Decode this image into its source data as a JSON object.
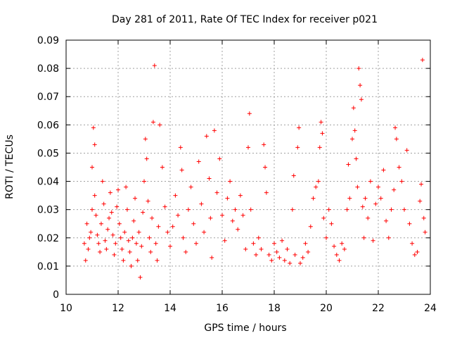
{
  "chart_data": {
    "type": "scatter",
    "title": "Day 281 of 2011, Rate Of TEC Index for receiver p021",
    "xlabel": "GPS time / hours",
    "ylabel": "ROTI / TECUs",
    "xlim": [
      10,
      24
    ],
    "ylim": [
      0,
      0.09
    ],
    "xticks": [
      10,
      12,
      14,
      16,
      18,
      20,
      22,
      24
    ],
    "xtick_labels": [
      "10",
      "12",
      "14",
      "16",
      "18",
      "20",
      "22",
      "24"
    ],
    "yticks": [
      0,
      0.01,
      0.02,
      0.03,
      0.04,
      0.05,
      0.06,
      0.07,
      0.08,
      0.09
    ],
    "ytick_labels": [
      "0",
      "0.01",
      "0.02",
      "0.03",
      "0.04",
      "0.05",
      "0.06",
      "0.07",
      "0.08",
      "0.09"
    ],
    "grid": true,
    "marker": "plus",
    "color": "#ff0000",
    "series": [
      {
        "points": [
          [
            10.7,
            0.018
          ],
          [
            10.75,
            0.012
          ],
          [
            10.8,
            0.025
          ],
          [
            10.85,
            0.016
          ],
          [
            10.9,
            0.02
          ],
          [
            10.95,
            0.022
          ],
          [
            11.0,
            0.03
          ],
          [
            11.0,
            0.045
          ],
          [
            11.05,
            0.059
          ],
          [
            11.1,
            0.053
          ],
          [
            11.1,
            0.035
          ],
          [
            11.15,
            0.028
          ],
          [
            11.2,
            0.021
          ],
          [
            11.25,
            0.018
          ],
          [
            11.3,
            0.015
          ],
          [
            11.35,
            0.025
          ],
          [
            11.4,
            0.04
          ],
          [
            11.45,
            0.032
          ],
          [
            11.5,
            0.019
          ],
          [
            11.55,
            0.016
          ],
          [
            11.6,
            0.023
          ],
          [
            11.65,
            0.027
          ],
          [
            11.7,
            0.036
          ],
          [
            11.75,
            0.029
          ],
          [
            11.8,
            0.021
          ],
          [
            11.85,
            0.014
          ],
          [
            11.9,
            0.018
          ],
          [
            11.95,
            0.031
          ],
          [
            12.0,
            0.037
          ],
          [
            12.05,
            0.025
          ],
          [
            12.1,
            0.02
          ],
          [
            12.15,
            0.016
          ],
          [
            12.2,
            0.012
          ],
          [
            12.25,
            0.022
          ],
          [
            12.3,
            0.038
          ],
          [
            12.35,
            0.03
          ],
          [
            12.4,
            0.019
          ],
          [
            12.45,
            0.015
          ],
          [
            12.5,
            0.01
          ],
          [
            12.55,
            0.02
          ],
          [
            12.6,
            0.026
          ],
          [
            12.65,
            0.034
          ],
          [
            12.7,
            0.018
          ],
          [
            12.75,
            0.012
          ],
          [
            12.8,
            0.022
          ],
          [
            12.85,
            0.006
          ],
          [
            12.9,
            0.017
          ],
          [
            12.95,
            0.029
          ],
          [
            13.0,
            0.04
          ],
          [
            13.05,
            0.055
          ],
          [
            13.1,
            0.048
          ],
          [
            13.15,
            0.033
          ],
          [
            13.2,
            0.02
          ],
          [
            13.25,
            0.015
          ],
          [
            13.3,
            0.027
          ],
          [
            13.35,
            0.061
          ],
          [
            13.4,
            0.081
          ],
          [
            13.45,
            0.018
          ],
          [
            13.5,
            0.012
          ],
          [
            13.55,
            0.024
          ],
          [
            13.6,
            0.06
          ],
          [
            13.7,
            0.045
          ],
          [
            13.8,
            0.031
          ],
          [
            13.9,
            0.022
          ],
          [
            14.0,
            0.017
          ],
          [
            14.1,
            0.024
          ],
          [
            14.2,
            0.035
          ],
          [
            14.3,
            0.028
          ],
          [
            14.4,
            0.052
          ],
          [
            14.45,
            0.044
          ],
          [
            14.5,
            0.02
          ],
          [
            14.6,
            0.015
          ],
          [
            14.7,
            0.03
          ],
          [
            14.8,
            0.038
          ],
          [
            14.9,
            0.025
          ],
          [
            15.0,
            0.018
          ],
          [
            15.1,
            0.047
          ],
          [
            15.2,
            0.032
          ],
          [
            15.3,
            0.022
          ],
          [
            15.4,
            0.056
          ],
          [
            15.5,
            0.041
          ],
          [
            15.55,
            0.027
          ],
          [
            15.6,
            0.013
          ],
          [
            15.7,
            0.058
          ],
          [
            15.8,
            0.036
          ],
          [
            15.9,
            0.048
          ],
          [
            16.0,
            0.028
          ],
          [
            16.1,
            0.019
          ],
          [
            16.2,
            0.034
          ],
          [
            16.3,
            0.04
          ],
          [
            16.4,
            0.026
          ],
          [
            16.5,
            0.03
          ],
          [
            16.6,
            0.023
          ],
          [
            16.7,
            0.035
          ],
          [
            16.8,
            0.028
          ],
          [
            16.9,
            0.016
          ],
          [
            17.0,
            0.052
          ],
          [
            17.05,
            0.064
          ],
          [
            17.1,
            0.03
          ],
          [
            17.2,
            0.018
          ],
          [
            17.3,
            0.014
          ],
          [
            17.4,
            0.02
          ],
          [
            17.5,
            0.016
          ],
          [
            17.6,
            0.053
          ],
          [
            17.65,
            0.045
          ],
          [
            17.7,
            0.036
          ],
          [
            17.8,
            0.014
          ],
          [
            17.9,
            0.012
          ],
          [
            18.0,
            0.018
          ],
          [
            18.1,
            0.015
          ],
          [
            18.2,
            0.013
          ],
          [
            18.3,
            0.019
          ],
          [
            18.4,
            0.012
          ],
          [
            18.5,
            0.016
          ],
          [
            18.6,
            0.011
          ],
          [
            18.7,
            0.03
          ],
          [
            18.75,
            0.042
          ],
          [
            18.8,
            0.014
          ],
          [
            18.9,
            0.052
          ],
          [
            18.95,
            0.059
          ],
          [
            19.0,
            0.011
          ],
          [
            19.1,
            0.013
          ],
          [
            19.2,
            0.018
          ],
          [
            19.3,
            0.015
          ],
          [
            19.4,
            0.024
          ],
          [
            19.5,
            0.034
          ],
          [
            19.6,
            0.038
          ],
          [
            19.7,
            0.04
          ],
          [
            19.75,
            0.052
          ],
          [
            19.8,
            0.061
          ],
          [
            19.85,
            0.057
          ],
          [
            19.9,
            0.027
          ],
          [
            20.0,
            0.02
          ],
          [
            20.1,
            0.03
          ],
          [
            20.2,
            0.025
          ],
          [
            20.3,
            0.017
          ],
          [
            20.4,
            0.014
          ],
          [
            20.5,
            0.012
          ],
          [
            20.6,
            0.018
          ],
          [
            20.7,
            0.016
          ],
          [
            20.8,
            0.03
          ],
          [
            20.85,
            0.046
          ],
          [
            20.9,
            0.034
          ],
          [
            21.0,
            0.055
          ],
          [
            21.05,
            0.066
          ],
          [
            21.1,
            0.058
          ],
          [
            21.15,
            0.048
          ],
          [
            21.2,
            0.038
          ],
          [
            21.25,
            0.08
          ],
          [
            21.3,
            0.074
          ],
          [
            21.35,
            0.069
          ],
          [
            21.4,
            0.031
          ],
          [
            21.45,
            0.02
          ],
          [
            21.5,
            0.034
          ],
          [
            21.6,
            0.027
          ],
          [
            21.7,
            0.04
          ],
          [
            21.8,
            0.019
          ],
          [
            21.9,
            0.032
          ],
          [
            22.0,
            0.038
          ],
          [
            22.1,
            0.034
          ],
          [
            22.2,
            0.044
          ],
          [
            22.3,
            0.026
          ],
          [
            22.4,
            0.02
          ],
          [
            22.5,
            0.03
          ],
          [
            22.6,
            0.037
          ],
          [
            22.65,
            0.059
          ],
          [
            22.7,
            0.055
          ],
          [
            22.8,
            0.045
          ],
          [
            22.9,
            0.04
          ],
          [
            23.0,
            0.03
          ],
          [
            23.1,
            0.051
          ],
          [
            23.2,
            0.025
          ],
          [
            23.3,
            0.018
          ],
          [
            23.4,
            0.014
          ],
          [
            23.5,
            0.015
          ],
          [
            23.6,
            0.033
          ],
          [
            23.65,
            0.039
          ],
          [
            23.7,
            0.083
          ],
          [
            23.75,
            0.027
          ],
          [
            23.8,
            0.022
          ]
        ]
      }
    ]
  }
}
